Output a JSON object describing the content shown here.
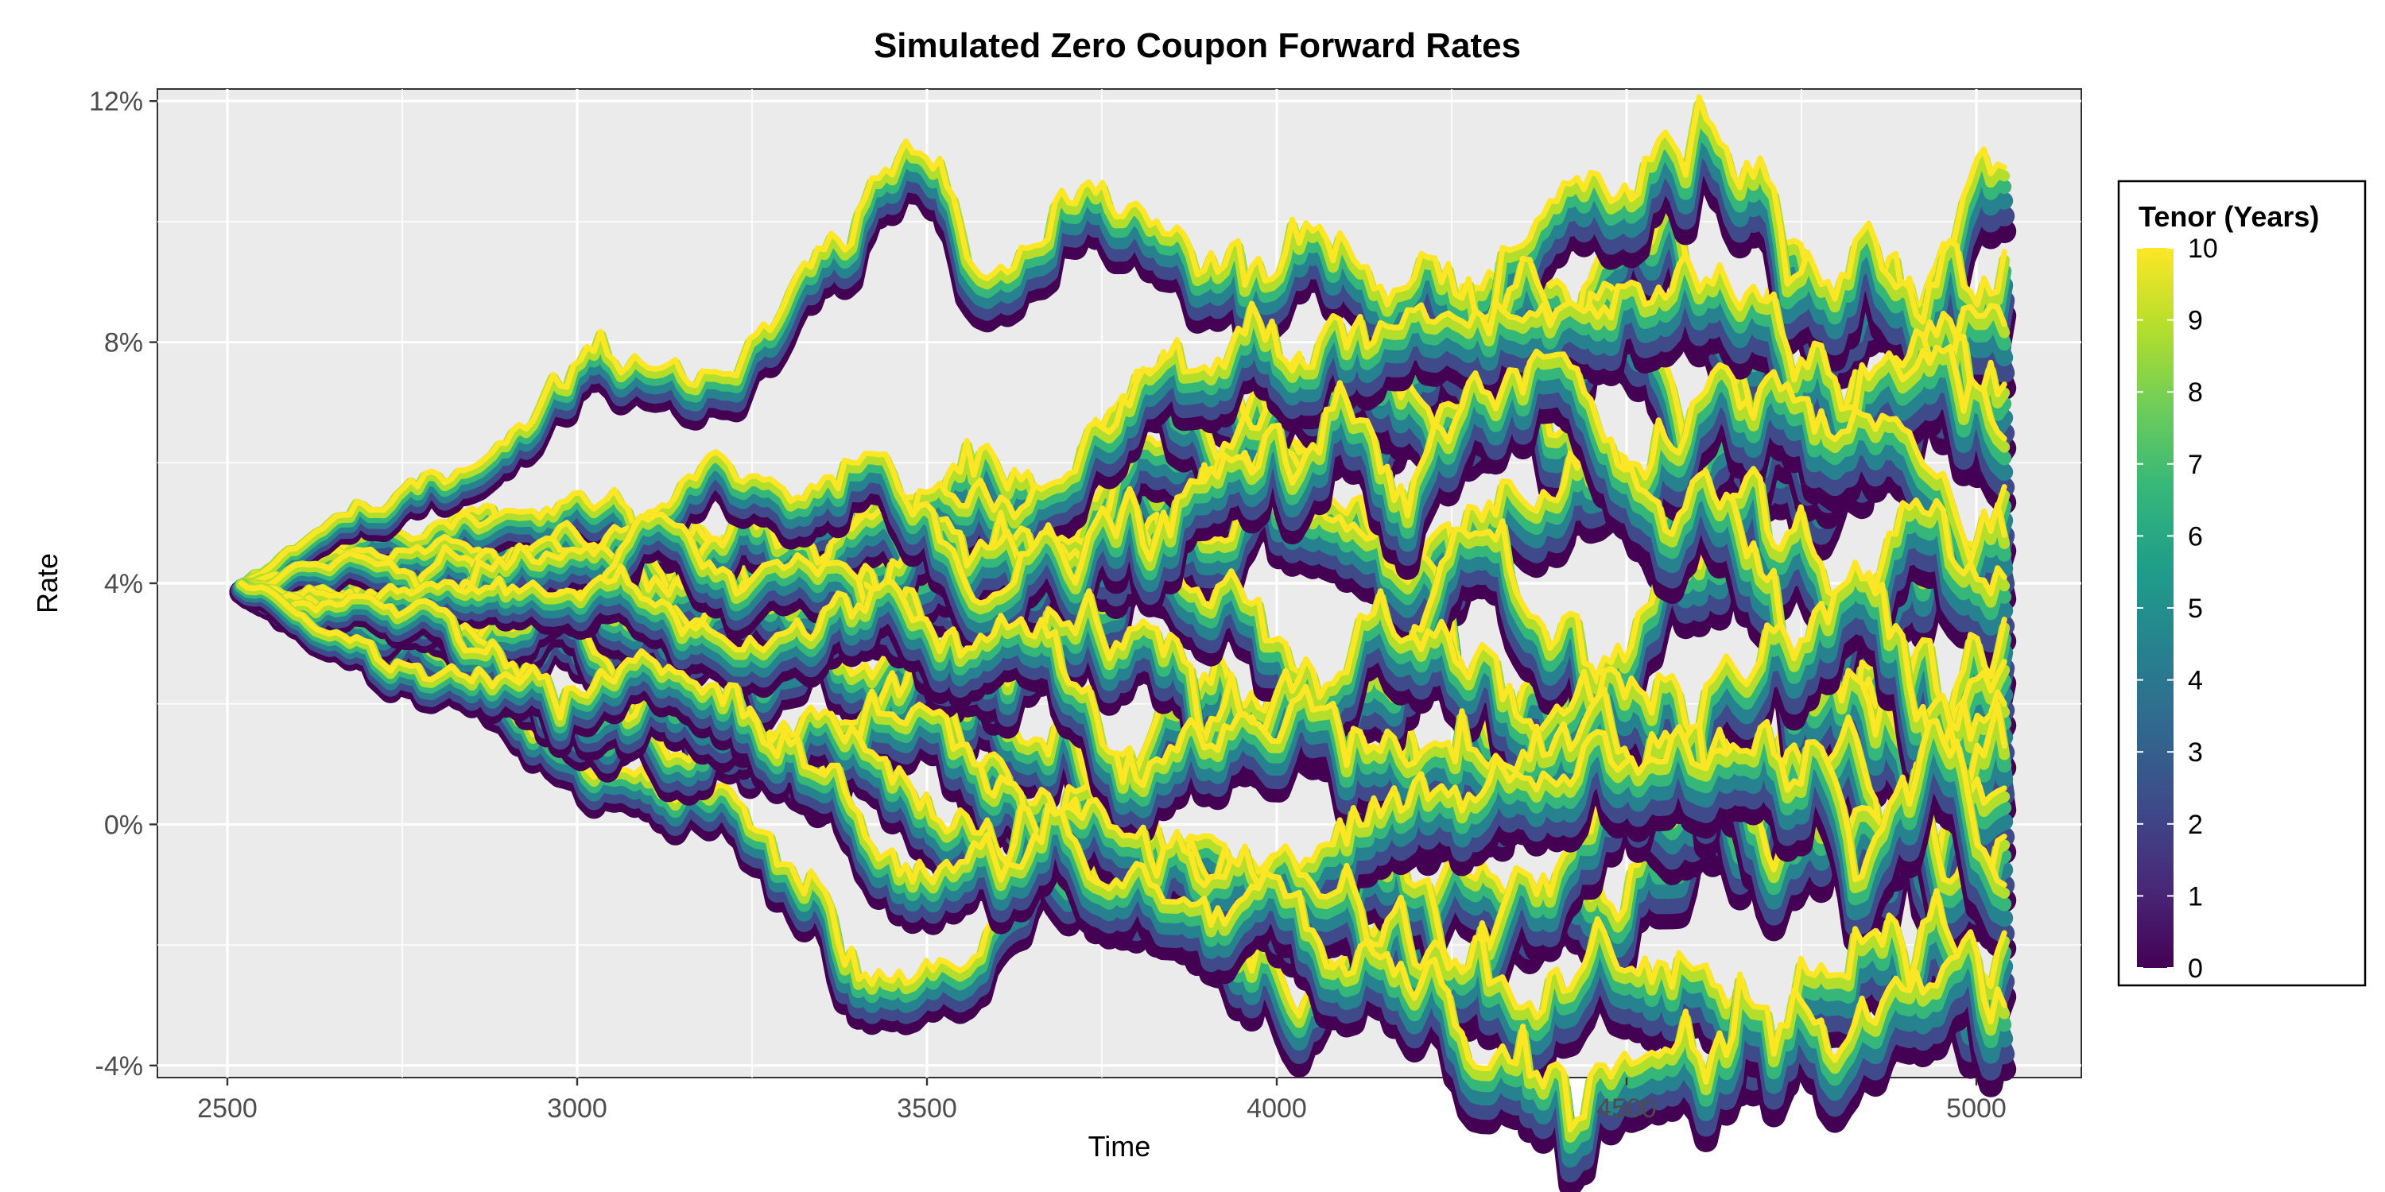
{
  "chart_data": {
    "type": "line",
    "title": "Simulated Zero Coupon Forward Rates",
    "xlabel": "Time",
    "ylabel": "Rate",
    "xlim": [
      2400,
      5150
    ],
    "ylim": [
      -0.042,
      0.122
    ],
    "x_ticks": [
      2500,
      3000,
      3500,
      4000,
      4500,
      5000
    ],
    "x_tick_labels": [
      "2500",
      "3000",
      "3500",
      "4000",
      "4500",
      "5000"
    ],
    "y_ticks": [
      -0.04,
      0.0,
      0.04,
      0.08,
      0.12
    ],
    "y_tick_labels": [
      "-4%",
      "0%",
      "4%",
      "8%",
      "12%"
    ],
    "grid": true,
    "x_start": 2520,
    "x_end": 5040,
    "start_rate": 0.04,
    "paths_shown_note": "many simulated paths; each path drawn as a band colored by tenor 0-10",
    "legend": {
      "title": "Tenor (Years)",
      "placement": "right",
      "min": 0,
      "max": 10,
      "labels": [
        "0",
        "1",
        "2",
        "3",
        "4",
        "5",
        "6",
        "7",
        "8",
        "9",
        "10"
      ],
      "colormap": "viridis",
      "colors": [
        "#440154",
        "#482878",
        "#3E4A89",
        "#31688E",
        "#26828E",
        "#1F9E89",
        "#35B779",
        "#6DCD59",
        "#B4DE2C",
        "#FDE725"
      ]
    },
    "series_endpoints": [
      {
        "end_rate": 0.109
      },
      {
        "end_rate": 0.095
      },
      {
        "end_rate": 0.083
      },
      {
        "end_rate": 0.073
      },
      {
        "end_rate": 0.064
      },
      {
        "end_rate": 0.056
      },
      {
        "end_rate": 0.048
      },
      {
        "end_rate": 0.041
      },
      {
        "end_rate": 0.034
      },
      {
        "end_rate": 0.027
      },
      {
        "end_rate": 0.02
      },
      {
        "end_rate": 0.013
      },
      {
        "end_rate": 0.006
      },
      {
        "end_rate": -0.002
      },
      {
        "end_rate": -0.01
      },
      {
        "end_rate": -0.018
      },
      {
        "end_rate": -0.03
      }
    ]
  }
}
